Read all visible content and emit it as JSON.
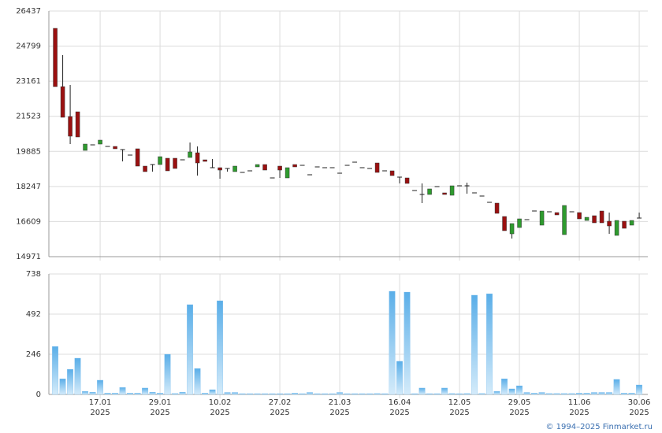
{
  "chart_data": [
    {
      "type": "candlestick",
      "open": [
        25628,
        22909,
        21512,
        21733,
        19932,
        20190,
        20226,
        20116,
        20116,
        19969,
        19712,
        20006,
        19197,
        19271,
        19271,
        19565,
        19565,
        19491,
        19601,
        19822,
        19491,
        19124,
        19124,
        19087,
        18940,
        18903,
        18977,
        19161,
        19271,
        18646,
        19197,
        18646,
        19271,
        19234,
        18793,
        19161,
        19124,
        19124,
        18866,
        19234,
        19381,
        19124,
        19087,
        19344,
        18977,
        18977,
        18683,
        18646,
        18058,
        17874,
        17874,
        18241,
        17948,
        17837,
        18278,
        18278,
        17948,
        17801,
        17507,
        17470,
        16845,
        16037,
        16331,
        16698,
        17102,
        16441,
        17066,
        17029,
        16000,
        17066,
        17029,
        16661,
        16882,
        17102,
        16625,
        15963,
        16625,
        16441,
        16772
      ],
      "high": [
        25628,
        24379,
        22983,
        21733,
        20226,
        20190,
        20410,
        20116,
        20116,
        19969,
        19712,
        20006,
        19197,
        19271,
        19638,
        19565,
        19565,
        19491,
        20300,
        20116,
        19491,
        19528,
        19124,
        19087,
        19197,
        18903,
        18977,
        19271,
        19271,
        18646,
        19197,
        19124,
        19271,
        19234,
        18793,
        19161,
        19124,
        19124,
        18866,
        19234,
        19381,
        19124,
        19087,
        19344,
        18977,
        18977,
        18683,
        18646,
        18058,
        18389,
        18132,
        18241,
        17948,
        18278,
        18278,
        18425,
        17948,
        17801,
        17507,
        17470,
        16845,
        16515,
        16735,
        16698,
        17102,
        17102,
        17066,
        17029,
        17360,
        17066,
        17029,
        16808,
        16882,
        17102,
        17029,
        16661,
        16625,
        16661,
        17029
      ],
      "low": [
        22909,
        21476,
        20226,
        20557,
        19932,
        20190,
        20226,
        20116,
        20006,
        19418,
        19712,
        19197,
        18940,
        18940,
        19271,
        18977,
        19087,
        19491,
        19601,
        18756,
        19418,
        19124,
        18609,
        18940,
        18940,
        18903,
        18977,
        19161,
        19013,
        18646,
        18646,
        18646,
        19161,
        19234,
        18793,
        19161,
        19124,
        19124,
        18866,
        19234,
        19381,
        19124,
        19087,
        18903,
        18977,
        18756,
        18389,
        18389,
        18058,
        17470,
        17874,
        18241,
        17874,
        17837,
        18278,
        17911,
        17948,
        17801,
        17507,
        16992,
        16184,
        15816,
        16331,
        16698,
        17102,
        16441,
        17066,
        16919,
        16000,
        17066,
        16735,
        16661,
        16551,
        16551,
        16037,
        15963,
        16294,
        16441,
        16772
      ],
      "close": [
        22909,
        21476,
        20594,
        20557,
        20226,
        20190,
        20410,
        20116,
        20006,
        19969,
        19712,
        19197,
        18940,
        19271,
        19638,
        18977,
        19087,
        19491,
        19859,
        19344,
        19418,
        19124,
        19013,
        19087,
        19197,
        18903,
        18977,
        19271,
        19013,
        18646,
        19013,
        19124,
        19161,
        19234,
        18793,
        19161,
        19124,
        19124,
        18866,
        19234,
        19381,
        19124,
        19087,
        18903,
        18977,
        18756,
        18683,
        18389,
        18058,
        17874,
        18132,
        18241,
        17874,
        18278,
        18278,
        18278,
        17948,
        17801,
        17507,
        16992,
        16184,
        16515,
        16735,
        16698,
        17102,
        17102,
        17066,
        16919,
        17360,
        17066,
        16735,
        16808,
        16551,
        16551,
        16404,
        16661,
        16294,
        16661,
        16772
      ],
      "up_color": "#2e9b2e",
      "down_color": "#9b1010",
      "ylim": [
        14971,
        26437
      ],
      "yticks": [
        14971,
        16609,
        18247,
        19885,
        21523,
        23161,
        24799,
        26437
      ],
      "grid": true
    },
    {
      "type": "bar",
      "categories": [
        null,
        null,
        null,
        null,
        null,
        null,
        "17.01",
        null,
        null,
        null,
        null,
        null,
        null,
        null,
        "29.01",
        null,
        null,
        null,
        null,
        null,
        null,
        null,
        "10.02",
        null,
        null,
        null,
        null,
        null,
        null,
        null,
        "27.02",
        null,
        null,
        null,
        null,
        null,
        null,
        null,
        "21.03",
        null,
        null,
        null,
        null,
        null,
        null,
        null,
        "16.04",
        null,
        null,
        null,
        null,
        null,
        null,
        null,
        "12.05",
        null,
        null,
        null,
        null,
        null,
        null,
        null,
        "29.05",
        null,
        null,
        null,
        null,
        null,
        null,
        null,
        "11.06",
        null,
        null,
        null,
        null,
        null,
        null,
        null,
        "30.06"
      ],
      "category_years": [
        null,
        null,
        null,
        null,
        null,
        null,
        "2025",
        null,
        null,
        null,
        null,
        null,
        null,
        null,
        "2025",
        null,
        null,
        null,
        null,
        null,
        null,
        null,
        "2025",
        null,
        null,
        null,
        null,
        null,
        null,
        null,
        "2025",
        null,
        null,
        null,
        null,
        null,
        null,
        null,
        "2025",
        null,
        null,
        null,
        null,
        null,
        null,
        null,
        "2025",
        null,
        null,
        null,
        null,
        null,
        null,
        null,
        "2025",
        null,
        null,
        null,
        null,
        null,
        null,
        null,
        "2025",
        null,
        null,
        null,
        null,
        null,
        null,
        null,
        "2025",
        null,
        null,
        null,
        null,
        null,
        null,
        null,
        "2025"
      ],
      "values": [
        294,
        96,
        154,
        222,
        19,
        14,
        87,
        8,
        8,
        43,
        8,
        8,
        39,
        14,
        8,
        246,
        6,
        14,
        550,
        159,
        8,
        29,
        574,
        12,
        12,
        5,
        5,
        5,
        5,
        5,
        5,
        5,
        8,
        5,
        12,
        5,
        5,
        5,
        12,
        5,
        5,
        5,
        5,
        6,
        5,
        632,
        203,
        627,
        5,
        39,
        5,
        5,
        39,
        6,
        5,
        6,
        608,
        6,
        617,
        19,
        96,
        34,
        53,
        12,
        8,
        12,
        6,
        6,
        6,
        6,
        8,
        8,
        12,
        12,
        12,
        92,
        8,
        8,
        58
      ],
      "color": "#7fbfee",
      "ylim": [
        0,
        738
      ],
      "yticks": [
        0,
        246,
        492,
        738
      ],
      "grid": true
    }
  ],
  "footer": "© 1994–2025 Finmarket.ru"
}
